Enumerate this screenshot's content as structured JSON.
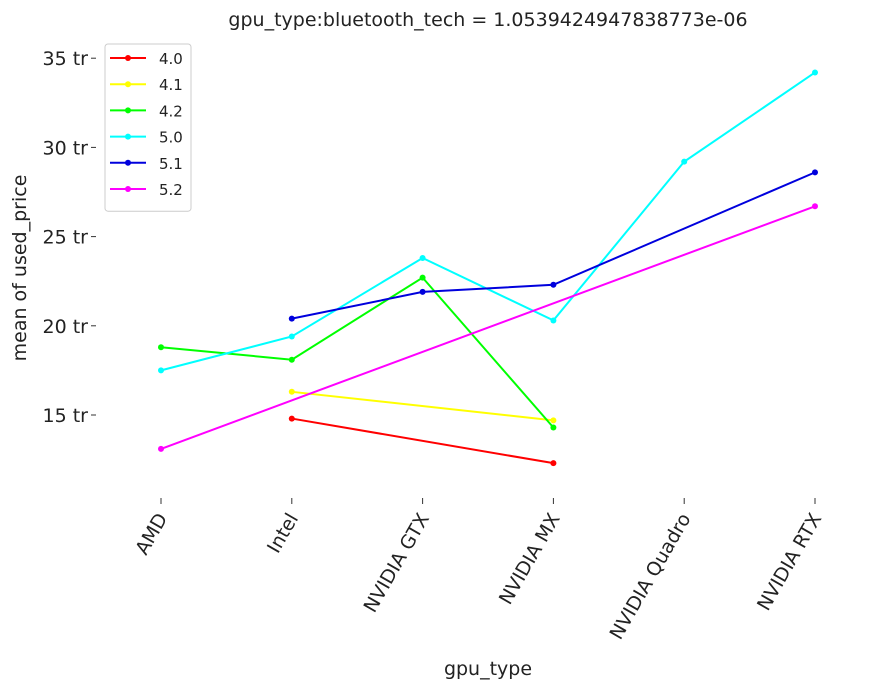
{
  "chart_data": {
    "type": "line",
    "title": "gpu_type:bluetooth_tech = 1.0539424947838773e-06",
    "xlabel": "gpu_type",
    "ylabel": "mean of used_price",
    "categories": [
      "AMD",
      "Intel",
      "NVIDIA GTX",
      "NVIDIA MX",
      "NVIDIA Quadro",
      "NVIDIA RTX"
    ],
    "y_ticks": [
      15,
      20,
      25,
      30,
      35
    ],
    "y_tick_labels": [
      "15 tr",
      "20 tr",
      "25 tr",
      "30 tr",
      "35 tr"
    ],
    "ylim": [
      10.5,
      36
    ],
    "legend_position": "top-left",
    "grid": false,
    "series": [
      {
        "name": "4.0",
        "color": "#ff0000",
        "values": [
          null,
          14.8,
          null,
          12.3,
          null,
          null
        ]
      },
      {
        "name": "4.1",
        "color": "#ffff00",
        "values": [
          null,
          16.3,
          null,
          14.7,
          null,
          null
        ]
      },
      {
        "name": "4.2",
        "color": "#00ff00",
        "values": [
          18.8,
          18.1,
          22.7,
          14.3,
          null,
          null
        ]
      },
      {
        "name": "5.0",
        "color": "#00ffff",
        "values": [
          17.5,
          19.4,
          23.8,
          20.3,
          29.2,
          34.2
        ]
      },
      {
        "name": "5.1",
        "color": "#0000dd",
        "values": [
          null,
          20.4,
          21.9,
          22.3,
          null,
          28.6
        ]
      },
      {
        "name": "5.2",
        "color": "#ff00ff",
        "values": [
          13.1,
          null,
          null,
          null,
          null,
          26.7
        ]
      }
    ]
  }
}
